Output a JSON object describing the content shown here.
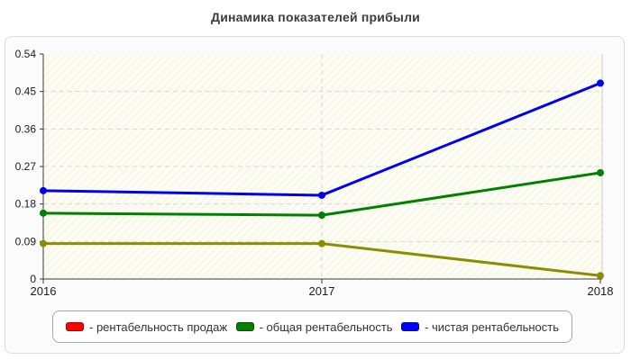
{
  "chart_data": {
    "type": "line",
    "title": "Динамика показателей прибыли",
    "categories": [
      "2016",
      "2017",
      "2018"
    ],
    "series": [
      {
        "name": "рентабельность продаж",
        "line_color": "#8c8c00",
        "values": [
          0.085,
          0.085,
          0.008
        ]
      },
      {
        "name": "общая рентабельность",
        "line_color": "#008000",
        "values": [
          0.158,
          0.153,
          0.255
        ]
      },
      {
        "name": "чистая рентабельность",
        "line_color": "#0000ee",
        "values": [
          0.212,
          0.201,
          0.47
        ]
      }
    ],
    "xlabel": "",
    "ylabel": "",
    "ylim": [
      0,
      0.54
    ],
    "yticks": [
      0,
      0.09,
      0.18,
      0.27,
      0.36,
      0.45,
      0.54
    ],
    "ytick_labels": [
      "0",
      "0.09",
      "0.18",
      "0.27",
      "0.36",
      "0.45",
      "0.54"
    ],
    "grid": "dashed",
    "plot_background": "#f8f8ec",
    "legend_position": "bottom",
    "legend": {
      "items": [
        {
          "label": "- рентабельность продаж",
          "swatch_color": "#ff0000"
        },
        {
          "label": "- общая рентабельность",
          "swatch_color": "#008000"
        },
        {
          "label": "- чистая рентабельность",
          "swatch_color": "#0000ff"
        }
      ]
    }
  }
}
